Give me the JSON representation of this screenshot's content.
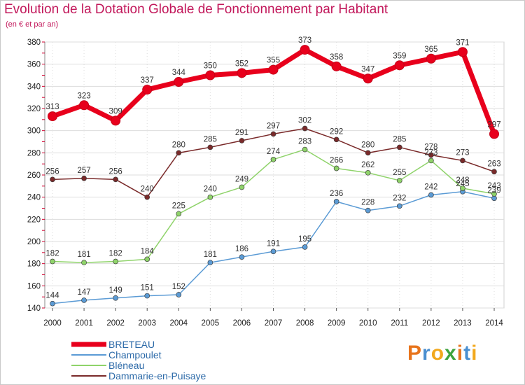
{
  "header": {
    "title": "Evolution de la Dotation Globale de Fonctionnement par Habitant",
    "subtitle": "(en € et par an)"
  },
  "logo": {
    "text": "Proxiti",
    "letter_colors": [
      "#e8741c",
      "#4a8fd0",
      "#f2a81d",
      "#3da33d",
      "#e8741c",
      "#4a8fd0",
      "#f2a81d"
    ]
  },
  "chart_data": {
    "type": "line",
    "title": "Evolution de la Dotation Globale de Fonctionnement par Habitant",
    "subtitle": "(en € et par an)",
    "xlabel": "",
    "ylabel": "",
    "x": [
      "2000",
      "2001",
      "2002",
      "2003",
      "2004",
      "2005",
      "2006",
      "2007",
      "2008",
      "2009",
      "2010",
      "2011",
      "2012",
      "2013",
      "2014"
    ],
    "ylim": [
      140,
      380
    ],
    "yticks": [
      140,
      160,
      180,
      200,
      220,
      240,
      260,
      280,
      300,
      320,
      340,
      360,
      380
    ],
    "grid": true,
    "legend_position": "bottom-left",
    "series": [
      {
        "name": "BRETEAU",
        "color": "#e8001c",
        "values": [
          313,
          323,
          309,
          337,
          344,
          350,
          352,
          355,
          373,
          358,
          347,
          359,
          365,
          371,
          297
        ]
      },
      {
        "name": "Champoulet",
        "color": "#5b9bd5",
        "values": [
          144,
          147,
          149,
          151,
          152,
          181,
          186,
          191,
          195,
          236,
          228,
          232,
          242,
          245,
          239
        ]
      },
      {
        "name": "Bléneau",
        "color": "#8fd36a",
        "values": [
          182,
          181,
          182,
          184,
          225,
          240,
          249,
          274,
          283,
          266,
          262,
          255,
          273,
          248,
          243
        ]
      },
      {
        "name": "Dammarie-en-Puisaye",
        "color": "#7a2a2a",
        "values": [
          256,
          257,
          256,
          240,
          280,
          285,
          291,
          297,
          302,
          292,
          280,
          285,
          278,
          273,
          263
        ]
      }
    ]
  }
}
